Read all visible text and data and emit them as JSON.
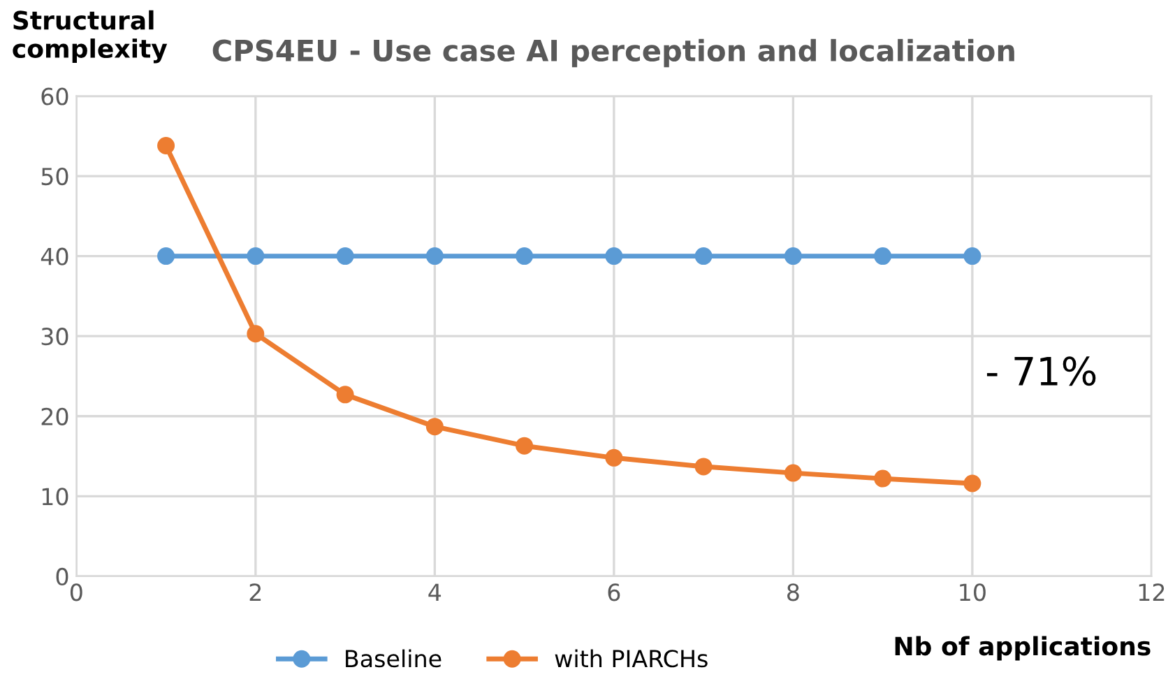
{
  "chart_data": {
    "type": "line",
    "title": "CPS4EU - Use case AI perception and localization",
    "xlabel": "Nb of applications",
    "ylabel": "Structural\ncomplexity",
    "x": [
      1,
      2,
      3,
      4,
      5,
      6,
      7,
      8,
      9,
      10
    ],
    "series": [
      {
        "name": "Baseline",
        "color": "#5b9bd5",
        "values": [
          40,
          40,
          40,
          40,
          40,
          40,
          40,
          40,
          40,
          40
        ]
      },
      {
        "name": "with PIARCHs",
        "color": "#ed7d31",
        "values": [
          53.8,
          30.3,
          22.7,
          18.7,
          16.3,
          14.8,
          13.7,
          12.9,
          12.2,
          11.6
        ]
      }
    ],
    "annotations": [
      "- 71%"
    ],
    "xlim": [
      0,
      12
    ],
    "xticks": [
      0,
      2,
      4,
      6,
      8,
      10,
      12
    ],
    "ylim": [
      0,
      60
    ],
    "yticks": [
      0,
      10,
      20,
      30,
      40,
      50,
      60
    ],
    "grid": true,
    "legend": "bottom",
    "marker": "circle",
    "line_style": "solid"
  }
}
